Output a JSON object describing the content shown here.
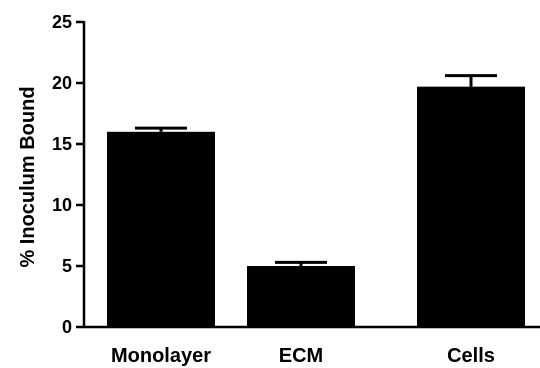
{
  "chart_data": {
    "type": "bar",
    "title": "",
    "xlabel": "",
    "ylabel": "% Inoculum Bound",
    "ylim": [
      0,
      25
    ],
    "yticks": [
      0,
      5,
      10,
      15,
      20,
      25
    ],
    "categories": [
      "Monolayer",
      "ECM",
      "Cells"
    ],
    "values": [
      16.0,
      5.0,
      19.7
    ],
    "errors": [
      0.3,
      0.3,
      0.9
    ],
    "bar_color": "#000000",
    "grid": false,
    "legend": "none"
  }
}
